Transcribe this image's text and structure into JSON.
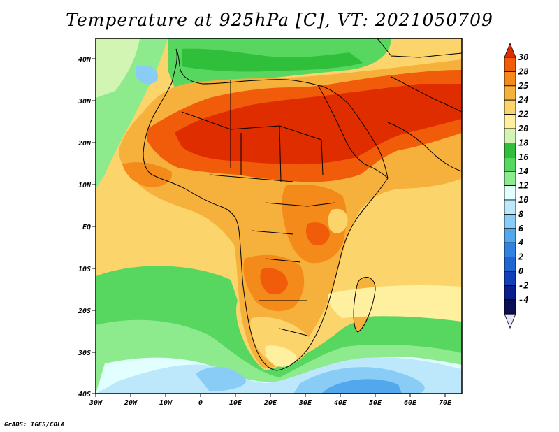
{
  "title": "Temperature at 925hPa [C], VT: 2021050709",
  "credit": "GrADS: IGES/COLA",
  "lat_labels": [
    "40N",
    "30N",
    "20N",
    "10N",
    "EQ",
    "10S",
    "20S",
    "30S",
    "40S"
  ],
  "lon_labels": [
    "30W",
    "20W",
    "10W",
    "0",
    "10E",
    "20E",
    "30E",
    "40E",
    "50E",
    "60E",
    "70E"
  ],
  "colorbar": {
    "levels": [
      "30",
      "28",
      "25",
      "24",
      "22",
      "20",
      "18",
      "16",
      "14",
      "12",
      "10",
      "8",
      "6",
      "4",
      "2",
      "0",
      "-2",
      "-4"
    ],
    "colors": [
      "#e02d00",
      "#f15c0b",
      "#f38a1a",
      "#f6b03c",
      "#fbd56c",
      "#fff0a0",
      "#d2f5b4",
      "#2fbf3a",
      "#57d760",
      "#8deb8e",
      "#e1ffff",
      "#bde8fb",
      "#89cdf6",
      "#53a8ed",
      "#3283e0",
      "#2165d2",
      "#1240b8",
      "#0a1e8c",
      "#0b0f58",
      "#e8e4fc"
    ]
  }
}
